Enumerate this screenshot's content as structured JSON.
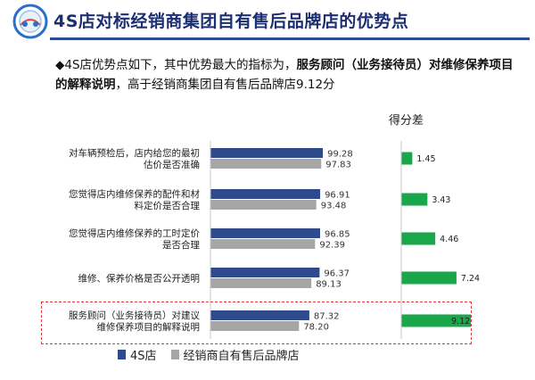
{
  "header": {
    "title": "4S店对标经销商集团自有售后品牌店的优势点",
    "logo_icon": "circular-logo-icon"
  },
  "summary": {
    "prefix": "◆4S店优势点如下，其中优势最大的指标为，",
    "highlight": "服务顾问（业务接待员）对维修保养项目的解释说明",
    "suffix": "，高于经销商集团自有售后品牌店9.12分"
  },
  "colors": {
    "header_title": "#1c2f72",
    "header_line": "#2e4a9c",
    "series_4s": "#2f4a8a",
    "series_dealer": "#a6a6a6",
    "diff_bar": "#1aa64a",
    "highlight_border": "#e33a3a"
  },
  "chart_data": {
    "type": "bar",
    "orientation": "horizontal",
    "categories": [
      [
        "对车辆预检后，店内给您的最初",
        "估价是否准确"
      ],
      [
        "您觉得店内维修保养的配件和材",
        "料定价是否合理"
      ],
      [
        "您觉得店内维修保养的工时定价",
        "是否合理"
      ],
      [
        "维修、保养价格是否公开透明"
      ],
      [
        "服务顾问（业务接待员）对建议",
        "维修保养项目的解释说明"
      ]
    ],
    "series": [
      {
        "name": "4S店",
        "values": [
          99.28,
          96.91,
          96.85,
          96.37,
          87.32
        ],
        "labels": [
          "99.28",
          "96.91",
          "96.85",
          "96.37",
          "87.32"
        ]
      },
      {
        "name": "经销商自有售后品牌店",
        "values": [
          97.83,
          93.48,
          92.39,
          89.13,
          78.2
        ],
        "labels": [
          "97.83",
          "93.48",
          "92.39",
          "89.13",
          "78.20"
        ]
      }
    ],
    "diff": {
      "title": "得分差",
      "values": [
        1.45,
        3.43,
        4.46,
        7.24,
        9.12
      ],
      "labels": [
        "1.45",
        "3.43",
        "4.46",
        "7.24",
        "9.12"
      ]
    },
    "highlighted_category_index": 4,
    "legend_position": "bottom-left",
    "grid": false
  }
}
